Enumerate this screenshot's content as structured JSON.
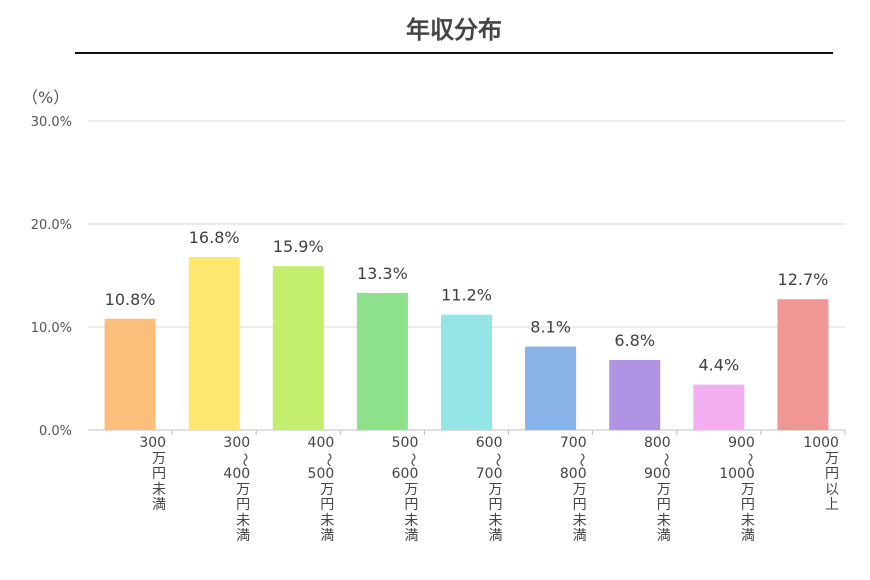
{
  "chart_data": {
    "type": "bar",
    "title": "年収分布",
    "ylabel": "（%）",
    "xlabel": "",
    "ylim": [
      0,
      30
    ],
    "yticks": [
      "0.0%",
      "10.0%",
      "20.0%",
      "30.0%"
    ],
    "grid": true,
    "categories": [
      "300万円未満",
      "300～400万円未満",
      "400～500万円未満",
      "500～600万円未満",
      "600～700万円未満",
      "700～800万円未満",
      "800～900万円未満",
      "900～1000万円未満",
      "1000万円以上"
    ],
    "values": [
      10.8,
      16.8,
      15.9,
      13.3,
      11.2,
      8.1,
      6.8,
      4.4,
      12.7
    ],
    "data_labels": [
      "10.8%",
      "16.8%",
      "15.9%",
      "13.3%",
      "11.2%",
      "8.1%",
      "6.8%",
      "4.4%",
      "12.7%"
    ],
    "colors": [
      "#FBBF7B",
      "#FDE76E",
      "#C2EE6B",
      "#8DE08C",
      "#94E6E6",
      "#89B2E8",
      "#B094E3",
      "#F2B0F0",
      "#F09795"
    ]
  }
}
